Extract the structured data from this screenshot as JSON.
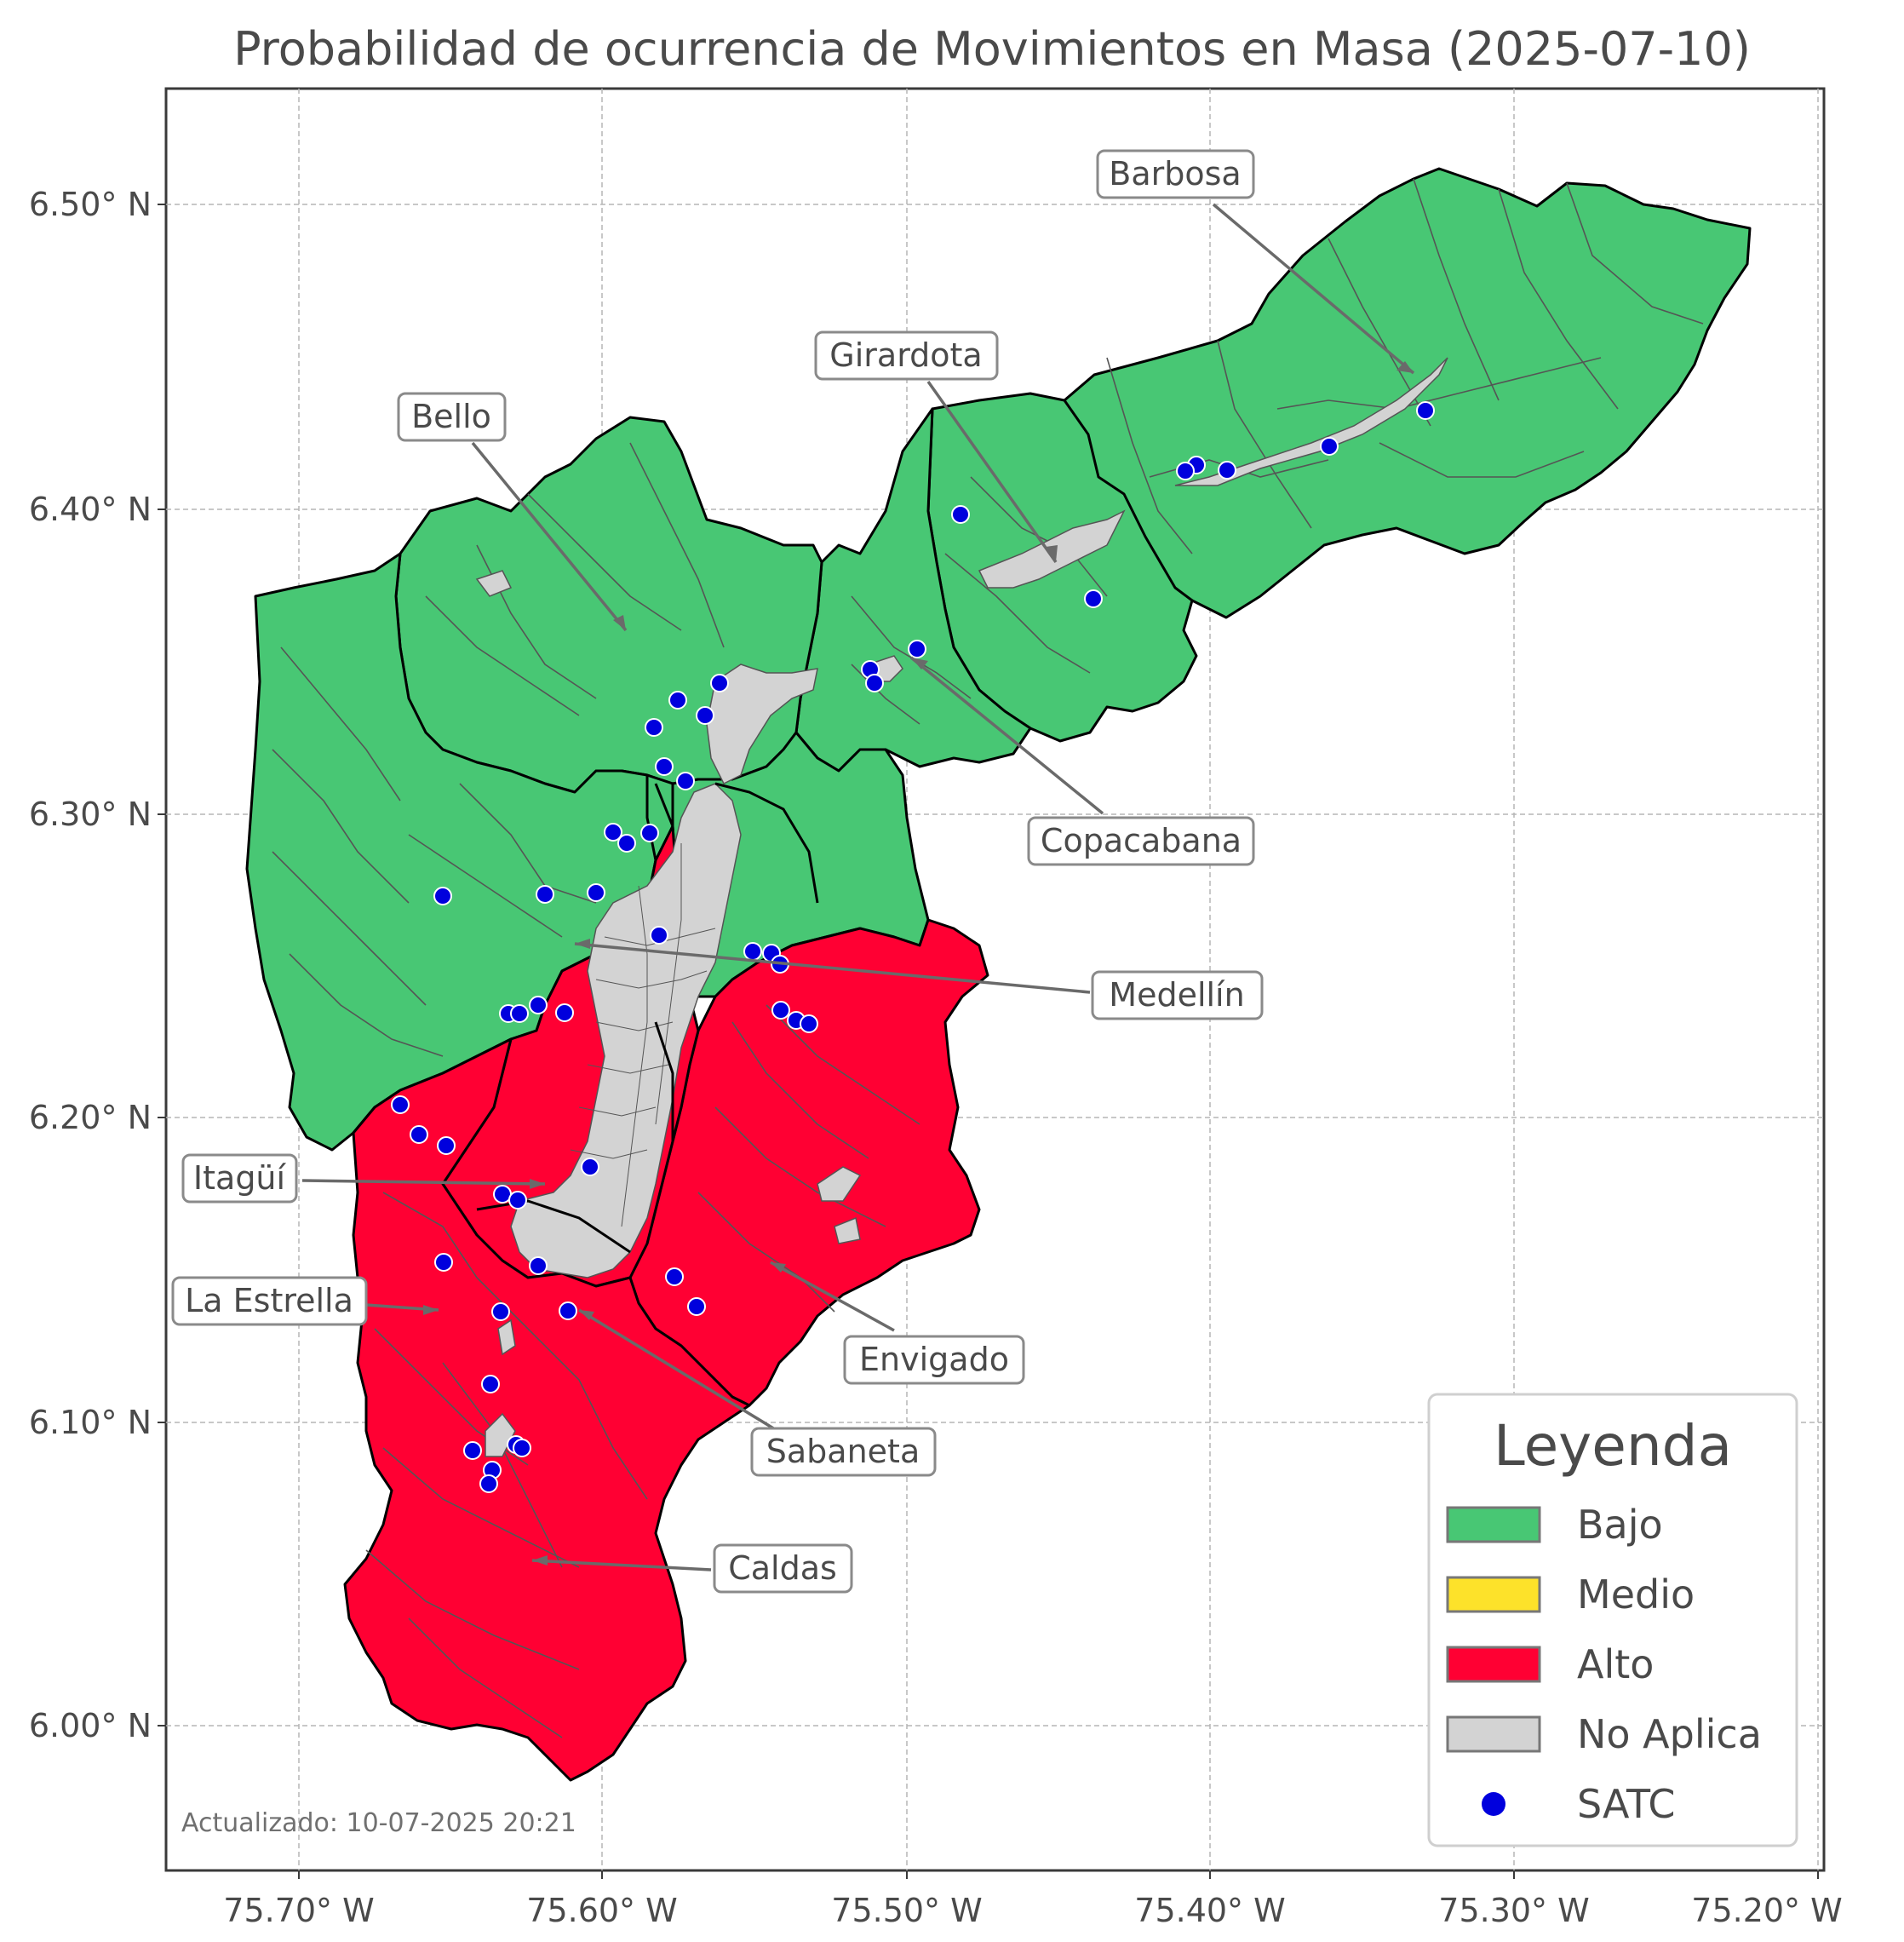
{
  "title": "Probabilidad de ocurrencia de Movimientos en Masa (2025-07-10)",
  "axes": {
    "x_ticks": [
      "75.70° W",
      "75.60° W",
      "75.50° W",
      "75.40° W",
      "75.30° W",
      "75.20° W"
    ],
    "y_ticks": [
      "6.50° N",
      "6.40° N",
      "6.30° N",
      "6.20° N",
      "6.10° N",
      "6.00° N"
    ]
  },
  "municipalities": [
    {
      "name": "Barbosa",
      "risk": "Bajo"
    },
    {
      "name": "Girardota",
      "risk": "Bajo"
    },
    {
      "name": "Bello",
      "risk": "Bajo"
    },
    {
      "name": "Copacabana",
      "risk": "Bajo"
    },
    {
      "name": "Medellín",
      "risk": "Bajo"
    },
    {
      "name": "Itagüí",
      "risk": "Alto"
    },
    {
      "name": "La Estrella",
      "risk": "Alto"
    },
    {
      "name": "Envigado",
      "risk": "Alto"
    },
    {
      "name": "Sabaneta",
      "risk": "Alto"
    },
    {
      "name": "Caldas",
      "risk": "Alto"
    }
  ],
  "legend": {
    "title": "Leyenda",
    "items": [
      {
        "label": "Bajo",
        "color": "#48c774"
      },
      {
        "label": "Medio",
        "color": "#fde22a"
      },
      {
        "label": "Alto",
        "color": "#ff0033"
      },
      {
        "label": "No Aplica",
        "color": "#d3d3d3"
      },
      {
        "label": "SATC",
        "color": "#0000dd"
      }
    ]
  },
  "updated": "Actualizado: 10-07-2025 20:21",
  "colors": {
    "bajo": "#48c774",
    "alto": "#ff0033",
    "no_aplica": "#d3d3d3",
    "satc": "#0000dd",
    "border": "#000000",
    "inner_border": "#4d4d4d"
  }
}
